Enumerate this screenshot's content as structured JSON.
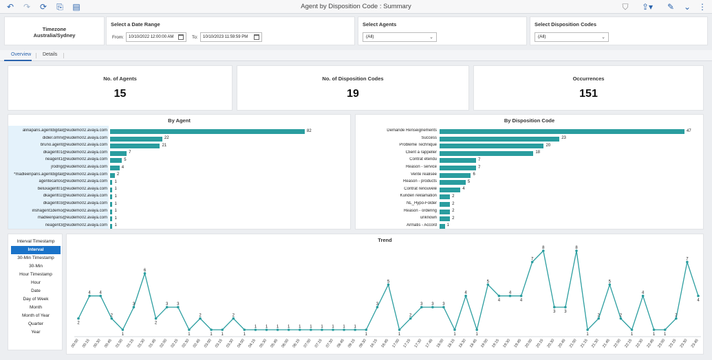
{
  "toolbar": {
    "title": "Agent by Disposition Code : Summary",
    "left_icons": [
      "undo-icon",
      "redo-icon",
      "refresh-icon",
      "export-icon",
      "notes-icon"
    ],
    "right_icons": [
      "filter-icon",
      "share-icon",
      "edit-icon",
      "collapse-icon",
      "more-icon"
    ]
  },
  "timezone": {
    "label": "Timezone",
    "value": "Australia/Sydney"
  },
  "date_range": {
    "title": "Select a Date Range",
    "from_label": "From:",
    "from_value": "10/10/2022 12:00:00 AM",
    "to_label": "To:",
    "to_value": "10/10/2023 11:59:59 PM"
  },
  "agents_filter": {
    "title": "Select Agents",
    "value": "(All)"
  },
  "disposition_filter": {
    "title": "Select Disposition Codes",
    "value": "(All)"
  },
  "tabs": [
    {
      "label": "Overview",
      "active": true
    },
    {
      "label": "Details",
      "active": false
    }
  ],
  "kpis": [
    {
      "title": "No. of Agents",
      "value": "15"
    },
    {
      "title": "No. of Disposition Codes",
      "value": "19"
    },
    {
      "title": "Occurrences",
      "value": "151"
    }
  ],
  "granularity": {
    "items": [
      "Interval Timestamp",
      "Interval",
      "30-Min Timestamp",
      "30-Min",
      "Hour Timestamp",
      "Hour",
      "Date",
      "Day of Week",
      "Month",
      "Month of Year",
      "Quarter",
      "Year"
    ],
    "selected": "Interval"
  },
  "chart_data": [
    {
      "type": "bar",
      "orientation": "horizontal",
      "title": "By Agent",
      "categories": [
        "alinaparis.agentdigital@eudemo02.avaya.com",
        "didier.omni@eudemo02.avaya.com",
        "bruno.agent@eudemo02.avaya.com",
        "dkagent01@eudemo02.avaya.com",
        "neagent1@eudemo02.avaya.com",
        "jrodrig@eudemo02.avaya.com",
        "*madleenparis.agentdigital@eudemo02.avaya.com",
        "agentecarlos@eudemo02.avaya.com",
        "beluxagent01@eudemo02.avaya.com",
        "dkagent02@eudemo02.avaya.com",
        "dkagent03@eudemo02.avaya.com",
        "irishagent1demo@eudemo02.avaya.com",
        "madleenparis@eudemo02.avaya.com",
        "neagent3@eudemo02.avaya.com"
      ],
      "values": [
        82,
        22,
        21,
        7,
        5,
        4,
        2,
        1,
        1,
        1,
        1,
        1,
        1,
        1
      ],
      "xlim": [
        0,
        82
      ]
    },
    {
      "type": "bar",
      "orientation": "horizontal",
      "title": "By Disposition Code",
      "categories": [
        "Demande Renseignements",
        "Success",
        "Problème Technique",
        "Client à rappeller",
        "Contrat étendu",
        "Reason - service",
        "Vente réalisée",
        "Reason - products",
        "Contrat renouvelé",
        "Kunden reklamation",
        "NL_Hypo-Folder",
        "Reason - ordering",
        "unknown",
        "Armatis - Accord"
      ],
      "values": [
        47,
        23,
        20,
        18,
        7,
        7,
        6,
        5,
        4,
        2,
        2,
        2,
        2,
        1
      ],
      "xlim": [
        0,
        47
      ]
    },
    {
      "type": "line",
      "title": "Trend",
      "x": [
        "00:00",
        "00:15",
        "00:30",
        "00:45",
        "01:00",
        "01:15",
        "01:30",
        "01:45",
        "02:00",
        "02:15",
        "02:30",
        "02:45",
        "03:00",
        "03:15",
        "03:30",
        "04:00",
        "04:15",
        "05:30",
        "05:45",
        "06:00",
        "06:15",
        "07:00",
        "07:15",
        "07:30",
        "08:45",
        "09:15",
        "09:30",
        "16:15",
        "16:45",
        "17:00",
        "17:15",
        "17:30",
        "17:45",
        "18:00",
        "18:15",
        "18:30",
        "18:45",
        "19:00",
        "19:15",
        "19:30",
        "19:45",
        "20:00",
        "20:15",
        "20:30",
        "20:45",
        "21:00",
        "21:15",
        "21:30",
        "21:45",
        "22:00",
        "22:15",
        "22:30",
        "22:45",
        "23:00",
        "23:15",
        "23:30",
        "23:45"
      ],
      "values": [
        2,
        4,
        4,
        2,
        1,
        3,
        6,
        2,
        3,
        3,
        1,
        2,
        1,
        1,
        2,
        1,
        1,
        1,
        1,
        1,
        1,
        1,
        1,
        1,
        1,
        1,
        1,
        3,
        5,
        1,
        2,
        3,
        3,
        3,
        1,
        4,
        1,
        5,
        4,
        4,
        4,
        7,
        8,
        3,
        3,
        8,
        1,
        2,
        5,
        2,
        1,
        4,
        1,
        1,
        2,
        7,
        4
      ],
      "ylim": [
        1,
        8
      ],
      "color": "#2a9d9f"
    }
  ]
}
